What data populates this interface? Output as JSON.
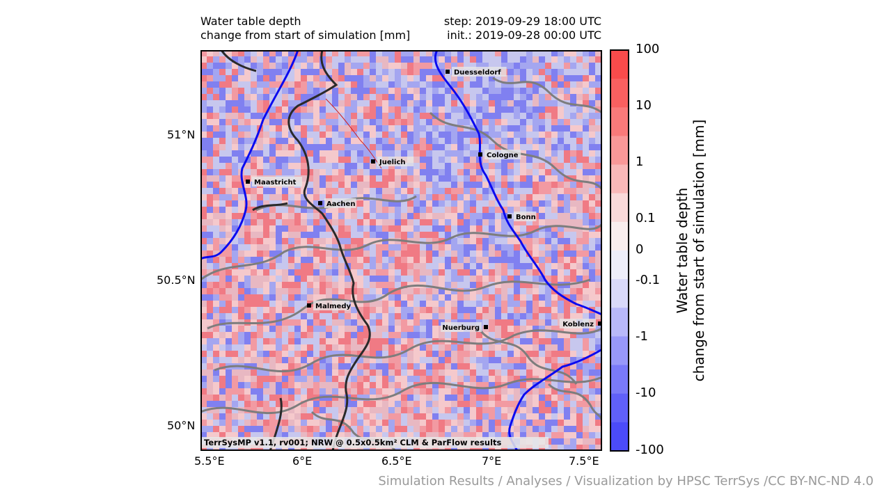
{
  "header": {
    "title_line1": "Water table depth",
    "title_line2": "change from start of simulation [mm]",
    "step": "step: 2019-09-29 18:00 UTC",
    "init": "init.: 2019-09-28 00:00 UTC"
  },
  "map": {
    "lat_ticks": [
      "51°N",
      "50.5°N",
      "50°N"
    ],
    "lon_ticks": [
      "5.5°E",
      "6°E",
      "6.5°E",
      "7°E",
      "7.5°E"
    ],
    "cities": [
      {
        "name": "Duesseldorf"
      },
      {
        "name": "Cologne"
      },
      {
        "name": "Juelich"
      },
      {
        "name": "Maastricht"
      },
      {
        "name": "Aachen"
      },
      {
        "name": "Bonn"
      },
      {
        "name": "Malmedy"
      },
      {
        "name": "Nuerburg"
      },
      {
        "name": "Koblenz"
      }
    ],
    "credit": "TerrSysMP v1.1, rv001; NRW @ 0.5x0.5km² CLM & ParFlow results"
  },
  "colorbar": {
    "labels": [
      "100",
      "10",
      "1",
      "0.1",
      "0",
      "-0.1",
      "-1",
      "-10",
      "-100"
    ],
    "axis_label_line1": "Water table depth",
    "axis_label_line2": "change from start of simulation [mm]",
    "colors": [
      "#f94b4b",
      "#f96060",
      "#f97a7a",
      "#f99898",
      "#f9b8b8",
      "#f9d9d9",
      "#f9eeee",
      "#eeeef9",
      "#d9d9f9",
      "#b8b8f9",
      "#9898f9",
      "#7a7af9",
      "#6060f9",
      "#4b4bf9"
    ]
  },
  "footer": {
    "credit": "Simulation Results / Analyses / Visualization by HPSC TerrSys /CC BY-NC-ND 4.0"
  }
}
